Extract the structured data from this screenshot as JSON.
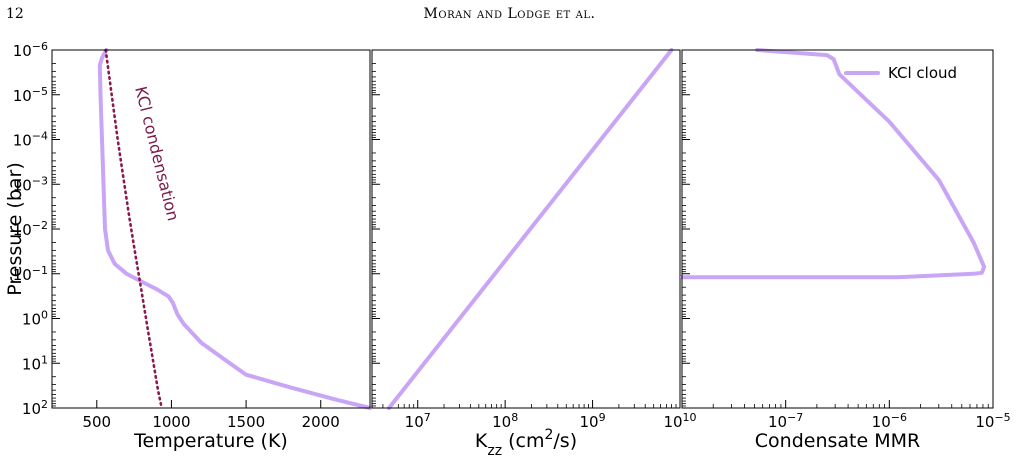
{
  "header": {
    "page_number": "12",
    "running_head": "Moran and Lodge et al."
  },
  "colors": {
    "profile": "#c9a5f5",
    "condensation": "#8a1a4d",
    "axes": "#000000"
  },
  "chart_data": [
    {
      "type": "line",
      "xlabel": "Temperature (K)",
      "ylabel": "Pressure (bar)",
      "xlim": [
        200,
        2330
      ],
      "xticks": [
        500,
        1000,
        1500,
        2000
      ],
      "xtick_labels": [
        "500",
        "1000",
        "1500",
        "2000"
      ],
      "ylim": [
        100,
        1e-06
      ],
      "yscale": "log",
      "yticks": [
        1e-06,
        1e-05,
        0.0001,
        0.001,
        0.01,
        0.1,
        1,
        10,
        100
      ],
      "ytick_labels": [
        {
          "base": "10",
          "exp": "−6"
        },
        {
          "base": "10",
          "exp": "−5"
        },
        {
          "base": "10",
          "exp": "−4"
        },
        {
          "base": "10",
          "exp": "−3"
        },
        {
          "base": "10",
          "exp": "−2"
        },
        {
          "base": "10",
          "exp": "−1"
        },
        {
          "base": "10",
          "exp": "0"
        },
        {
          "base": "10",
          "exp": "1"
        },
        {
          "base": "10",
          "exp": "2"
        }
      ],
      "series": [
        {
          "style": "solid",
          "x": [
            565,
            535,
            520,
            525,
            535,
            545,
            555,
            575,
            620,
            700,
            800,
            900,
            980,
            1010,
            1040,
            1080,
            1200,
            1350,
            1500,
            1800,
            2100,
            2330
          ],
          "y": [
            1e-06,
            1.5e-06,
            2.2e-06,
            1e-05,
            0.0001,
            0.001,
            0.01,
            0.03,
            0.06,
            0.1,
            0.15,
            0.22,
            0.32,
            0.45,
            0.8,
            1.3,
            3.5,
            8,
            18,
            35,
            65,
            100
          ]
        },
        {
          "style": "dotted",
          "x": [
            560,
            600,
            640,
            680,
            720,
            760,
            800,
            840,
            880,
            910,
            935
          ],
          "y": [
            1e-06,
            1e-05,
            0.0001,
            0.0008,
            0.006,
            0.04,
            0.25,
            1.6,
            10,
            40,
            100
          ]
        }
      ],
      "annotations": [
        {
          "text": "KCl condensation"
        }
      ]
    },
    {
      "type": "line",
      "xlabel": "K_zz (cm^2/s)",
      "xlabel_parts": {
        "base": "K",
        "sub": "zz",
        "mid": " (cm",
        "sup": "2",
        "tail": "/s)"
      },
      "xscale": "log",
      "xlim": [
        3000000,
        10000000000
      ],
      "xticks": [
        10000000,
        100000000,
        1000000000,
        10000000000
      ],
      "xtick_labels": [
        {
          "base": "10",
          "exp": "7"
        },
        {
          "base": "10",
          "exp": "8"
        },
        {
          "base": "10",
          "exp": "9"
        },
        {
          "base": "10",
          "exp": "10"
        }
      ],
      "ylim": [
        100,
        1e-06
      ],
      "yscale": "log",
      "series": [
        {
          "style": "solid",
          "x": [
            4700000,
            8000000000
          ],
          "y": [
            100,
            1e-06
          ]
        }
      ]
    },
    {
      "type": "line",
      "xlabel": "Condensate MMR",
      "xscale": "log",
      "xlim": [
        1e-08,
        1e-05
      ],
      "xticks": [
        1e-07,
        1e-06,
        1e-05
      ],
      "xtick_labels": [
        {
          "base": "10",
          "exp": "−7"
        },
        {
          "base": "10",
          "exp": "−6"
        },
        {
          "base": "10",
          "exp": "−5"
        }
      ],
      "ylim": [
        100,
        1e-06
      ],
      "yscale": "log",
      "legend": {
        "entries": [
          "KCl cloud"
        ],
        "placement": "top-right"
      },
      "series": [
        {
          "name": "KCl cloud",
          "style": "solid",
          "x": [
            5.3e-08,
            2.5e-07,
            2.9e-07,
            3.3e-07,
            1e-06,
            3e-06,
            6.5e-06,
            8.2e-06,
            7.8e-06,
            6.5e-06,
            1.2e-06,
            1e-08
          ],
          "y": [
            1e-06,
            1.3e-06,
            1.6e-06,
            3.5e-06,
            4e-05,
            0.0008,
            0.02,
            0.07,
            0.095,
            0.1,
            0.12,
            0.12
          ]
        }
      ]
    }
  ]
}
